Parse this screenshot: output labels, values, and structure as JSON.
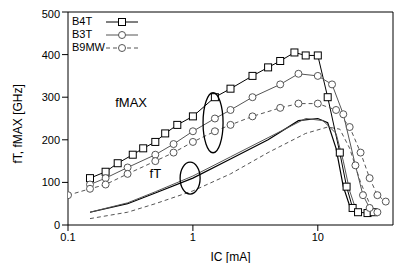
{
  "chart_data": {
    "type": "line",
    "x_label": "IC [mA]",
    "y_label": "fT, fMAX [GHz]",
    "log": "x",
    "xlim": [
      0.1,
      40
    ],
    "xticks": [
      0.1,
      1,
      10
    ],
    "ylim": [
      0,
      500
    ],
    "yticks": [
      0,
      100,
      200,
      300,
      400,
      500
    ],
    "legend": "upper left",
    "annotations": [
      {
        "text": "fMAX",
        "x": 0.32,
        "y": 285
      },
      {
        "text": "fT",
        "x": 0.5,
        "y": 118
      }
    ],
    "ellipses": [
      {
        "x": 1.45,
        "y": 240
      },
      {
        "x": 0.95,
        "y": 110
      }
    ],
    "series": [
      {
        "name": "B4T",
        "color": "#000000",
        "marker": "square",
        "line_style": "solid",
        "x": [
          0.15,
          0.2,
          0.25,
          0.33,
          0.4,
          0.5,
          0.6,
          0.75,
          1.0,
          1.5,
          2,
          3,
          4,
          5,
          6.5,
          8,
          10,
          12,
          15,
          17,
          19,
          21,
          25,
          28
        ],
        "values": [
          110,
          125,
          145,
          165,
          180,
          195,
          215,
          235,
          255,
          300,
          320,
          350,
          370,
          385,
          405,
          398,
          398,
          300,
          170,
          90,
          40,
          30,
          28,
          30
        ]
      },
      {
        "name": "B3T",
        "color": "#555555",
        "marker": "circle",
        "line_style": "solid",
        "x": [
          0.15,
          0.2,
          0.3,
          0.5,
          0.7,
          1,
          1.5,
          2,
          3,
          5,
          7,
          10,
          13,
          16,
          20,
          23,
          26,
          30
        ],
        "values": [
          95,
          110,
          135,
          165,
          190,
          220,
          250,
          270,
          300,
          330,
          355,
          350,
          330,
          260,
          140,
          70,
          40,
          30
        ]
      },
      {
        "name": "B9MW",
        "color": "#555555",
        "marker": "circle",
        "line_style": "dashed",
        "x": [
          0.1,
          0.15,
          0.2,
          0.3,
          0.5,
          0.7,
          1,
          1.5,
          2,
          3,
          5,
          7,
          10,
          14,
          18,
          22,
          26,
          30,
          35
        ],
        "values": [
          70,
          85,
          95,
          120,
          150,
          170,
          195,
          220,
          235,
          255,
          275,
          285,
          285,
          270,
          230,
          170,
          110,
          70,
          55
        ]
      },
      {
        "name": "B4T",
        "color": "#000000",
        "marker": "none",
        "line_style": "solid",
        "x": [
          0.15,
          0.3,
          0.5,
          1,
          2,
          4,
          7,
          10,
          12,
          14,
          16,
          18,
          20
        ],
        "values": [
          30,
          50,
          75,
          110,
          155,
          200,
          245,
          250,
          240,
          180,
          90,
          45,
          30
        ]
      },
      {
        "name": "B3T",
        "color": "#555555",
        "marker": "none",
        "line_style": "solid",
        "x": [
          0.15,
          0.3,
          0.5,
          1,
          2,
          4,
          8,
          11,
          14,
          16,
          18,
          20
        ],
        "values": [
          30,
          52,
          78,
          115,
          160,
          205,
          250,
          245,
          215,
          150,
          80,
          40
        ]
      },
      {
        "name": "B9MW",
        "color": "#555555",
        "marker": "none",
        "line_style": "dashed",
        "x": [
          0.15,
          0.3,
          0.5,
          1,
          2,
          4,
          8,
          12,
          15,
          18,
          22,
          26,
          30
        ],
        "values": [
          15,
          30,
          50,
          80,
          120,
          170,
          215,
          230,
          225,
          180,
          100,
          50,
          30
        ]
      }
    ]
  }
}
